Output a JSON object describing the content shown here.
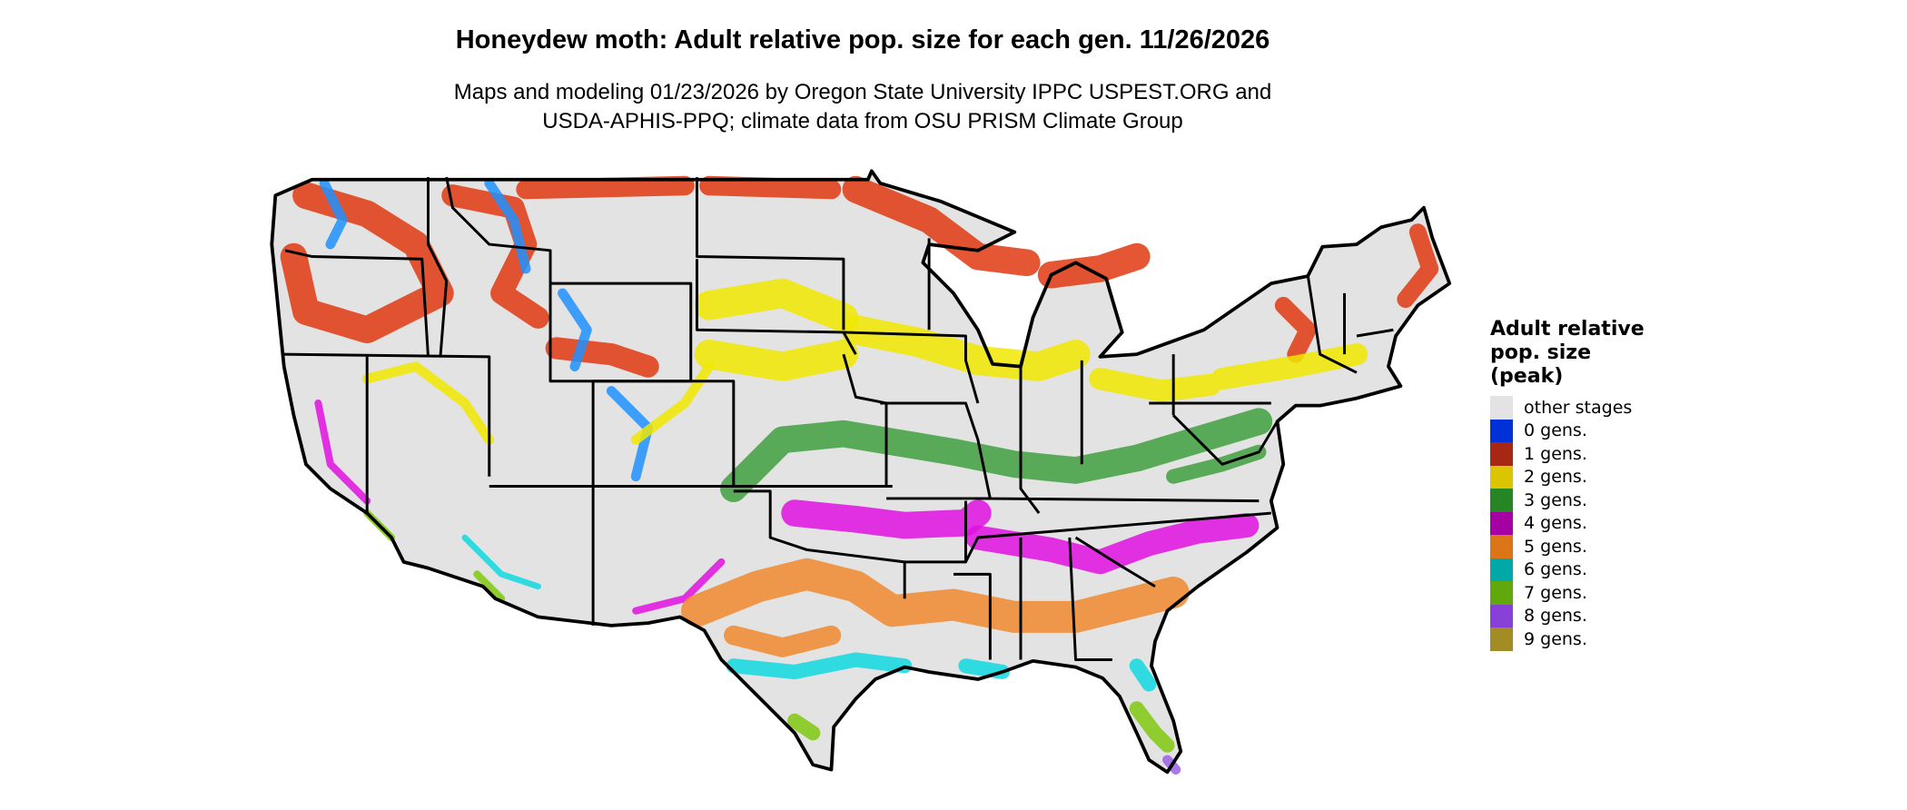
{
  "title": "Honeydew moth: Adult relative pop. size for each gen. 11/26/2026",
  "subtitle_line1": "Maps and modeling 01/23/2026 by Oregon State University IPPC USPEST.ORG and",
  "subtitle_line2": "USDA-APHIS-PPQ; climate data from OSU PRISM Climate Group",
  "legend": {
    "title_lines": [
      "Adult relative",
      "pop. size",
      "(peak)"
    ],
    "items": [
      {
        "label": "other stages",
        "color": "#e3e3e3"
      },
      {
        "label": "0 gens.",
        "color": "#0030d8"
      },
      {
        "label": "1 gens.",
        "color": "#a82614"
      },
      {
        "label": "2 gens.",
        "color": "#dcc400"
      },
      {
        "label": "3 gens.",
        "color": "#268626"
      },
      {
        "label": "4 gens.",
        "color": "#a400a4"
      },
      {
        "label": "5 gens.",
        "color": "#dc7418"
      },
      {
        "label": "6 gens.",
        "color": "#00a8a8"
      },
      {
        "label": "7 gens.",
        "color": "#60a80c"
      },
      {
        "label": "8 gens.",
        "color": "#8840d8"
      },
      {
        "label": "9 gens.",
        "color": "#a48c24"
      }
    ]
  },
  "map_colors": {
    "land": "#e3e3e3",
    "border": "#000000",
    "gen0_display": "#1e90ff",
    "gen1_display": "#e03a10",
    "gen2_display": "#f0e800",
    "gen3_display": "#40a040",
    "gen4_display": "#e010e0",
    "gen5_display": "#f08a30",
    "gen6_display": "#10d8e0",
    "gen7_display": "#80c810",
    "gen8_display": "#9a60e8"
  }
}
